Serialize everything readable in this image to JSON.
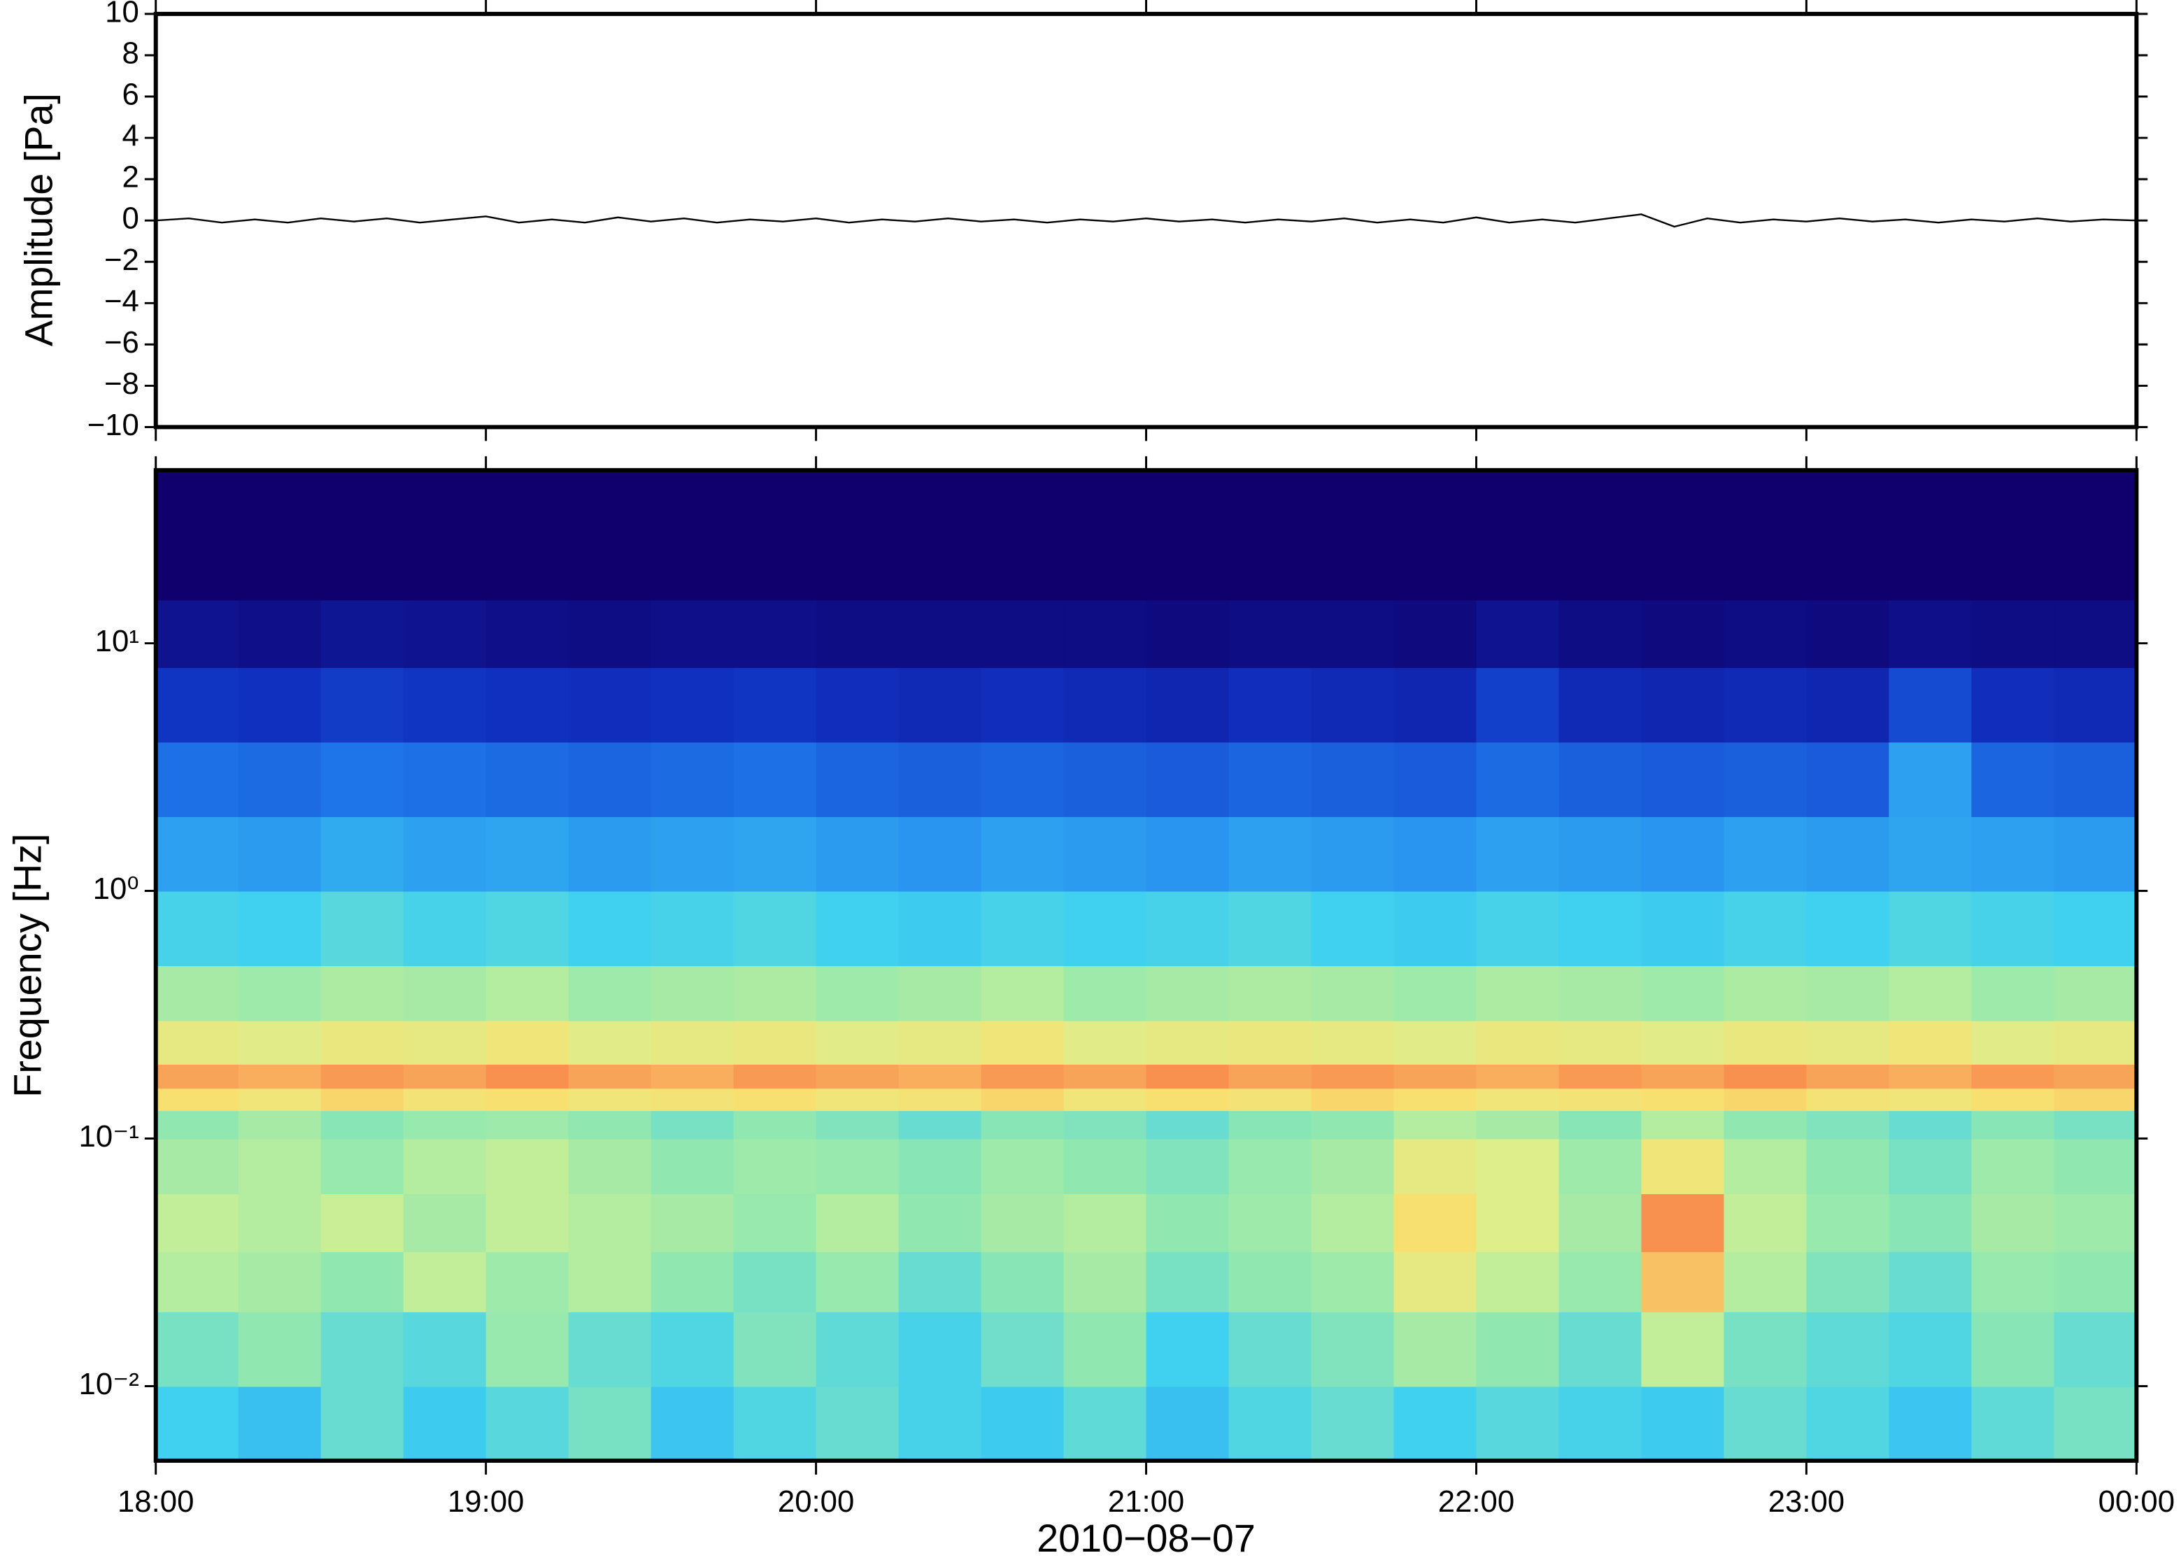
{
  "chart_data": [
    {
      "type": "line",
      "ylabel": "Amplitude [Pa]",
      "color": "#000000",
      "xlim": [
        18,
        24
      ],
      "ylim": [
        -10,
        10
      ],
      "yticks": [
        {
          "value": -10,
          "label": "−10"
        },
        {
          "value": -8,
          "label": "−8"
        },
        {
          "value": -6,
          "label": "−6"
        },
        {
          "value": -4,
          "label": "−4"
        },
        {
          "value": -2,
          "label": "−2"
        },
        0,
        2,
        4,
        6,
        8,
        10
      ],
      "x": [
        18,
        18.1,
        18.2,
        18.3,
        18.4,
        18.5,
        18.6,
        18.7,
        18.8,
        18.9,
        19,
        19.1,
        19.2,
        19.3,
        19.4,
        19.5,
        19.6,
        19.7,
        19.8,
        19.9,
        20,
        20.1,
        20.2,
        20.3,
        20.4,
        20.5,
        20.6,
        20.7,
        20.8,
        20.9,
        21,
        21.1,
        21.2,
        21.3,
        21.4,
        21.5,
        21.6,
        21.7,
        21.8,
        21.9,
        22,
        22.1,
        22.2,
        22.3,
        22.4,
        22.5,
        22.6,
        22.7,
        22.8,
        22.9,
        23,
        23.1,
        23.2,
        23.3,
        23.4,
        23.5,
        23.6,
        23.7,
        23.8,
        23.9,
        24
      ],
      "values": [
        0,
        0.1,
        -0.1,
        0.05,
        -0.1,
        0.1,
        -0.05,
        0.1,
        -0.1,
        0.05,
        0.2,
        -0.1,
        0.05,
        -0.1,
        0.15,
        -0.05,
        0.1,
        -0.1,
        0.05,
        -0.05,
        0.1,
        -0.1,
        0.05,
        -0.05,
        0.1,
        -0.05,
        0.05,
        -0.1,
        0.05,
        -0.05,
        0.1,
        -0.05,
        0.05,
        -0.1,
        0.05,
        -0.05,
        0.1,
        -0.1,
        0.05,
        -0.1,
        0.15,
        -0.1,
        0.05,
        -0.1,
        0.1,
        0.3,
        -0.3,
        0.1,
        -0.1,
        0.05,
        -0.05,
        0.1,
        -0.05,
        0.05,
        -0.1,
        0.05,
        -0.05,
        0.1,
        -0.05,
        0.05,
        0
      ]
    },
    {
      "type": "heatmap",
      "ylabel": "Frequency [Hz]",
      "xlabel": "2010−08−07",
      "log_y": true,
      "colormap": "jet",
      "xlim": [
        18,
        24
      ],
      "ylim": [
        0.005,
        50
      ],
      "xticks": [
        {
          "value": 18,
          "label": "18:00"
        },
        {
          "value": 19,
          "label": "19:00"
        },
        {
          "value": 20,
          "label": "20:00"
        },
        {
          "value": 21,
          "label": "21:00"
        },
        {
          "value": 22,
          "label": "22:00"
        },
        {
          "value": 23,
          "label": "23:00"
        },
        {
          "value": 24,
          "label": "00:00"
        }
      ],
      "yticks": [
        {
          "value": 0.01,
          "label": "10⁻²"
        },
        {
          "value": 0.1,
          "label": "10⁻¹"
        },
        {
          "value": 1,
          "label": "10⁰"
        },
        {
          "value": 10,
          "label": "10¹"
        }
      ],
      "x_edges": [
        18,
        18.25,
        18.5,
        18.75,
        19,
        19.25,
        19.5,
        19.75,
        20,
        20.25,
        20.5,
        20.75,
        21,
        21.25,
        21.5,
        21.75,
        22,
        22.25,
        22.5,
        22.75,
        23,
        23.25,
        23.5,
        23.75,
        24
      ],
      "y_edges": [
        0.005,
        0.01,
        0.02,
        0.035,
        0.06,
        0.1,
        0.13,
        0.16,
        0.2,
        0.3,
        0.5,
        1,
        2,
        4,
        8,
        15,
        50
      ],
      "z": [
        [
          0.45,
          0.42,
          0.5,
          0.44,
          0.48,
          0.52,
          0.43,
          0.47,
          0.5,
          0.46,
          0.44,
          0.49,
          0.42,
          0.47,
          0.5,
          0.45,
          0.48,
          0.46,
          0.44,
          0.5,
          0.47,
          0.43,
          0.49,
          0.52
        ],
        [
          0.52,
          0.55,
          0.5,
          0.48,
          0.56,
          0.5,
          0.47,
          0.53,
          0.49,
          0.46,
          0.51,
          0.55,
          0.45,
          0.5,
          0.53,
          0.58,
          0.55,
          0.5,
          0.62,
          0.52,
          0.49,
          0.47,
          0.54,
          0.5
        ],
        [
          0.6,
          0.58,
          0.55,
          0.62,
          0.57,
          0.6,
          0.55,
          0.52,
          0.56,
          0.5,
          0.54,
          0.58,
          0.52,
          0.55,
          0.57,
          0.68,
          0.62,
          0.56,
          0.75,
          0.6,
          0.53,
          0.5,
          0.56,
          0.55
        ],
        [
          0.62,
          0.6,
          0.63,
          0.58,
          0.62,
          0.6,
          0.58,
          0.56,
          0.6,
          0.55,
          0.58,
          0.6,
          0.55,
          0.57,
          0.6,
          0.72,
          0.66,
          0.58,
          0.8,
          0.62,
          0.56,
          0.54,
          0.58,
          0.57
        ],
        [
          0.58,
          0.6,
          0.56,
          0.6,
          0.62,
          0.58,
          0.55,
          0.57,
          0.56,
          0.54,
          0.57,
          0.55,
          0.53,
          0.56,
          0.58,
          0.68,
          0.66,
          0.57,
          0.7,
          0.6,
          0.55,
          0.52,
          0.57,
          0.55
        ],
        [
          0.55,
          0.58,
          0.54,
          0.56,
          0.57,
          0.55,
          0.52,
          0.55,
          0.53,
          0.5,
          0.54,
          0.53,
          0.5,
          0.54,
          0.55,
          0.6,
          0.58,
          0.54,
          0.6,
          0.55,
          0.53,
          0.5,
          0.54,
          0.52
        ],
        [
          0.72,
          0.7,
          0.73,
          0.71,
          0.72,
          0.7,
          0.71,
          0.72,
          0.7,
          0.71,
          0.73,
          0.7,
          0.72,
          0.71,
          0.73,
          0.72,
          0.7,
          0.71,
          0.72,
          0.73,
          0.71,
          0.7,
          0.72,
          0.73
        ],
        [
          0.78,
          0.77,
          0.79,
          0.78,
          0.8,
          0.78,
          0.77,
          0.79,
          0.78,
          0.77,
          0.79,
          0.78,
          0.8,
          0.78,
          0.79,
          0.78,
          0.77,
          0.79,
          0.78,
          0.8,
          0.78,
          0.77,
          0.79,
          0.78
        ],
        [
          0.68,
          0.67,
          0.69,
          0.68,
          0.7,
          0.67,
          0.68,
          0.69,
          0.67,
          0.68,
          0.7,
          0.67,
          0.68,
          0.69,
          0.68,
          0.67,
          0.69,
          0.68,
          0.67,
          0.69,
          0.68,
          0.7,
          0.67,
          0.68
        ],
        [
          0.58,
          0.57,
          0.59,
          0.58,
          0.6,
          0.57,
          0.58,
          0.59,
          0.57,
          0.58,
          0.6,
          0.57,
          0.58,
          0.59,
          0.58,
          0.57,
          0.59,
          0.58,
          0.57,
          0.59,
          0.58,
          0.6,
          0.57,
          0.58
        ],
        [
          0.46,
          0.45,
          0.48,
          0.46,
          0.47,
          0.45,
          0.46,
          0.47,
          0.45,
          0.44,
          0.46,
          0.45,
          0.46,
          0.47,
          0.45,
          0.44,
          0.46,
          0.45,
          0.44,
          0.46,
          0.45,
          0.47,
          0.46,
          0.45
        ],
        [
          0.36,
          0.35,
          0.38,
          0.36,
          0.37,
          0.35,
          0.36,
          0.37,
          0.35,
          0.34,
          0.36,
          0.35,
          0.34,
          0.36,
          0.35,
          0.34,
          0.36,
          0.35,
          0.34,
          0.36,
          0.35,
          0.37,
          0.36,
          0.35
        ],
        [
          0.27,
          0.26,
          0.28,
          0.27,
          0.26,
          0.25,
          0.26,
          0.27,
          0.25,
          0.24,
          0.25,
          0.24,
          0.23,
          0.25,
          0.24,
          0.23,
          0.26,
          0.24,
          0.23,
          0.24,
          0.23,
          0.36,
          0.25,
          0.24
        ],
        [
          0.16,
          0.15,
          0.17,
          0.16,
          0.15,
          0.14,
          0.15,
          0.16,
          0.14,
          0.13,
          0.14,
          0.13,
          0.12,
          0.14,
          0.13,
          0.12,
          0.18,
          0.13,
          0.12,
          0.13,
          0.12,
          0.2,
          0.14,
          0.13
        ],
        [
          0.06,
          0.05,
          0.07,
          0.06,
          0.05,
          0.04,
          0.05,
          0.05,
          0.04,
          0.04,
          0.04,
          0.04,
          0.03,
          0.04,
          0.04,
          0.03,
          0.06,
          0.04,
          0.03,
          0.04,
          0.03,
          0.05,
          0.04,
          0.04
        ],
        [
          0,
          0,
          0,
          0,
          0,
          0,
          0,
          0,
          0,
          0,
          0,
          0,
          0,
          0,
          0,
          0,
          0,
          0,
          0,
          0,
          0,
          0,
          0,
          0
        ]
      ]
    }
  ]
}
